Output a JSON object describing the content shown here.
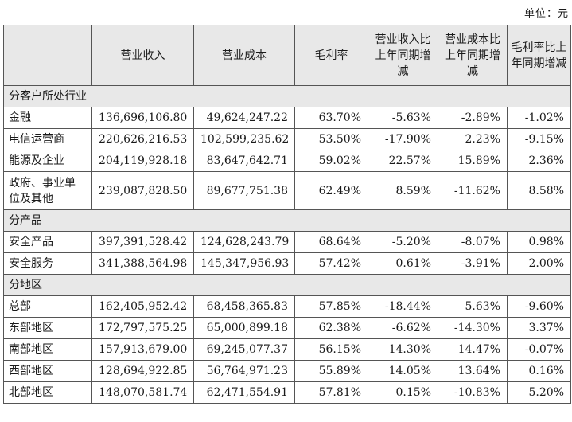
{
  "unit_label": "单位：元",
  "headers": [
    "",
    "营业收入",
    "营业成本",
    "毛利率",
    "营业收入比上年同期增减",
    "营业成本比上年同期增减",
    "毛利率比上年同期增减"
  ],
  "sections": [
    {
      "title": "分客户所处行业",
      "rows": [
        [
          "金融",
          "136,696,106.80",
          "49,624,247.22",
          "63.70%",
          "-5.63%",
          "-2.89%",
          "-1.02%"
        ],
        [
          "电信运营商",
          "220,626,216.53",
          "102,599,235.62",
          "53.50%",
          "-17.90%",
          "2.23%",
          "-9.15%"
        ],
        [
          "能源及企业",
          "204,119,928.18",
          "83,647,642.71",
          "59.02%",
          "22.57%",
          "15.89%",
          "2.36%"
        ],
        [
          "政府、事业单位及其他",
          "239,087,828.50",
          "89,677,751.38",
          "62.49%",
          "8.59%",
          "-11.62%",
          "8.58%"
        ]
      ]
    },
    {
      "title": "分产品",
      "rows": [
        [
          "安全产品",
          "397,391,528.42",
          "124,628,243.79",
          "68.64%",
          "-5.20%",
          "-8.07%",
          "0.98%"
        ],
        [
          "安全服务",
          "341,388,564.98",
          "145,347,956.93",
          "57.42%",
          "0.61%",
          "-3.91%",
          "2.00%"
        ]
      ]
    },
    {
      "title": "分地区",
      "rows": [
        [
          "总部",
          "162,405,952.42",
          "68,458,365.83",
          "57.85%",
          "-18.44%",
          "5.63%",
          "-9.60%"
        ],
        [
          "东部地区",
          "172,797,575.25",
          "65,000,899.18",
          "62.38%",
          "-6.62%",
          "-14.30%",
          "3.37%"
        ],
        [
          "南部地区",
          "157,913,679.00",
          "69,245,077.37",
          "56.15%",
          "14.30%",
          "14.47%",
          "-0.07%"
        ],
        [
          "西部地区",
          "128,694,922.85",
          "56,764,971.23",
          "55.89%",
          "14.05%",
          "13.64%",
          "0.16%"
        ],
        [
          "北部地区",
          "148,070,581.74",
          "62,471,554.91",
          "57.81%",
          "0.15%",
          "-10.83%",
          "5.20%"
        ]
      ]
    }
  ]
}
